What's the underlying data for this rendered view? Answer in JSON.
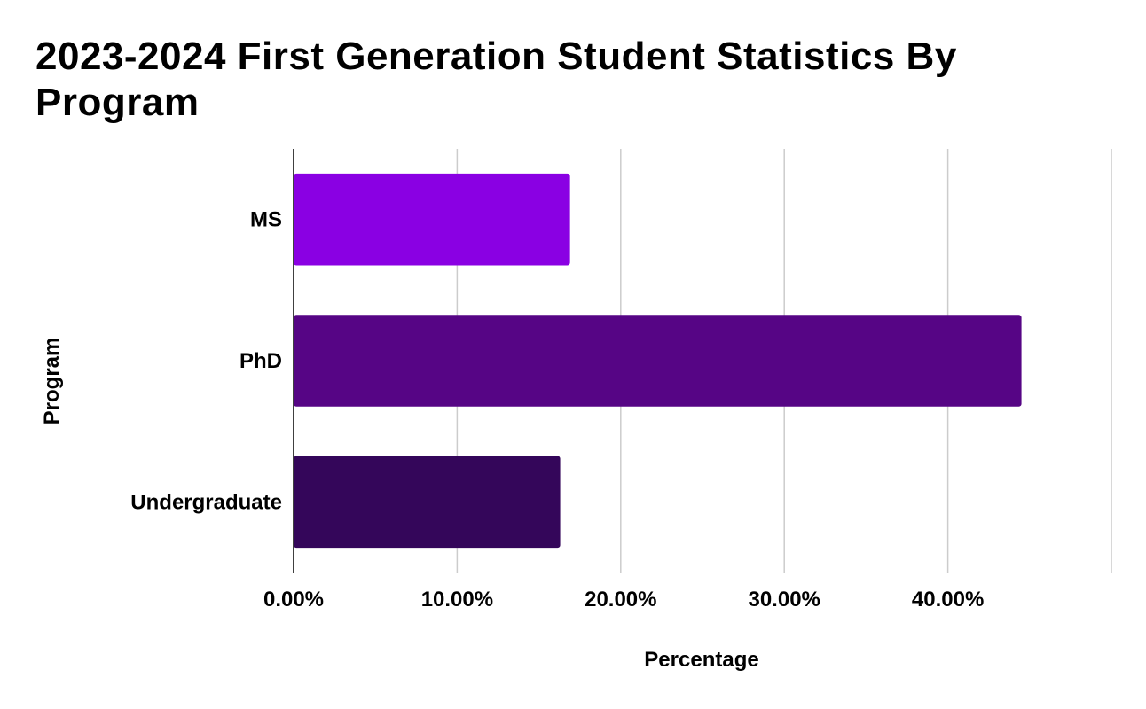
{
  "chart_data": {
    "type": "bar",
    "orientation": "horizontal",
    "title": "2023-2024 First Generation Student Statistics By Program",
    "xlabel": "Percentage",
    "ylabel": "Program",
    "categories": [
      "MS",
      "PhD",
      "Undergraduate"
    ],
    "values": [
      16.9,
      44.5,
      16.3
    ],
    "bar_colors": [
      "#8a00e3",
      "#560585",
      "#34065a"
    ],
    "xlim": [
      0,
      50
    ],
    "x_ticks": [
      0,
      10,
      20,
      30,
      40
    ],
    "x_tick_labels": [
      "0.00%",
      "10.00%",
      "20.00%",
      "30.00%",
      "40.00%"
    ],
    "grid": "vertical",
    "legend": "none"
  }
}
